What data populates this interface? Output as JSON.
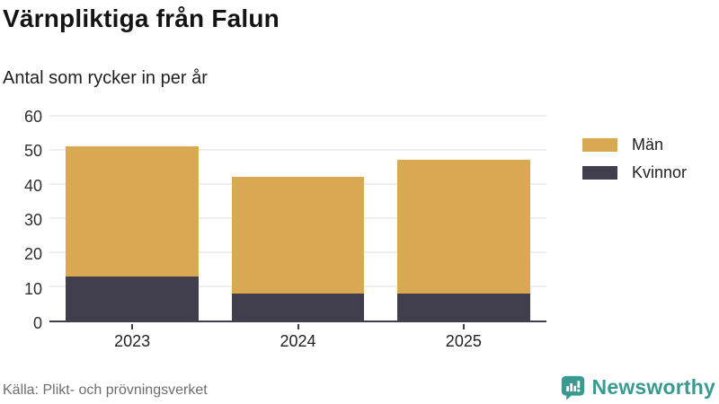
{
  "header": {
    "title": "Värnpliktiga från Falun",
    "subtitle": "Antal som rycker in per år"
  },
  "chart_data": {
    "type": "bar",
    "stacked": true,
    "title": "Värnpliktiga från Falun",
    "subtitle": "Antal som rycker in per år",
    "categories": [
      "2023",
      "2024",
      "2025"
    ],
    "series": [
      {
        "name": "Män",
        "color": "#d8a852",
        "values": [
          38,
          34,
          39
        ]
      },
      {
        "name": "Kvinnor",
        "color": "#413f4e",
        "values": [
          13,
          8,
          8
        ]
      }
    ],
    "stack_order_bottom_to_top": [
      "Kvinnor",
      "Män"
    ],
    "totals": [
      51,
      42,
      47
    ],
    "xlabel": "",
    "ylabel": "",
    "ylim": [
      0,
      60
    ],
    "yticks": [
      0,
      10,
      20,
      30,
      40,
      50,
      60
    ],
    "grid": true,
    "legend_position": "right"
  },
  "footer": {
    "source": "Källa: Plikt- och prövningsverket",
    "brand": "Newsworthy"
  },
  "colors": {
    "men_bar": "#d8a852",
    "women_bar": "#413f4e",
    "axis": "#413f4e",
    "gridline": "#dedede",
    "brand_teal": "#399a92",
    "source_text": "#6d6d6d"
  }
}
